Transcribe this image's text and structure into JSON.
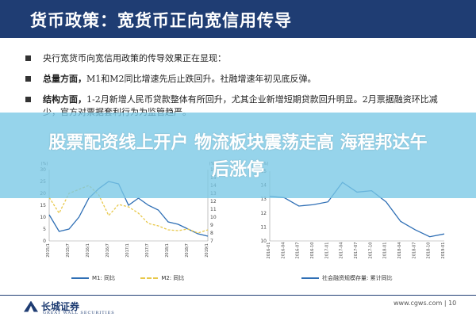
{
  "header": {
    "title": "货币政策：宽货币正向宽信用传导"
  },
  "bullets": [
    {
      "bold": "",
      "text": "央行宽货币向宽信用政策的传导效果正在显现："
    },
    {
      "bold": "总量方面，",
      "text": "M1和M2同比增速先后止跌回升。社融增速年初见底反弹。"
    },
    {
      "bold": "结构方面，",
      "text": "1-2月新增人民币贷款整体有所回升，尤其企业新增短期贷款回升明显。2月票据融资环比减少，官方对票据套利行为为监管趋严。"
    }
  ],
  "banner": {
    "line1": "股票配资线上开户 物流板块震荡走高 海程邦达午",
    "line2": "后涨停"
  },
  "left_chart": {
    "unit_left": "(%)",
    "unit_right": "(%)",
    "y_left_ticks": [
      "30",
      "25",
      "20",
      "15",
      "10",
      "5",
      "0"
    ],
    "y_right_ticks": [
      "16",
      "15",
      "14",
      "13",
      "12",
      "11",
      "10",
      "9",
      "8",
      "7"
    ],
    "x_ticks": [
      "2015/1",
      "2015/7",
      "2016/1",
      "2016/7",
      "2017/1",
      "2017/7",
      "2018/1",
      "2018/7",
      "2019/1"
    ],
    "legend": [
      "M1: 同比",
      "M2: 同比"
    ]
  },
  "right_chart": {
    "unit": "(%)",
    "y_ticks": [
      "15",
      "14",
      "13",
      "12",
      "11",
      "10"
    ],
    "x_ticks": [
      "2016-01",
      "2016-04",
      "2016-07",
      "2016-10",
      "2017-01",
      "2017-04",
      "2017-07",
      "2017-10",
      "2018-01",
      "2018-04",
      "2018-07",
      "2018-10",
      "2019-01"
    ],
    "legend": [
      "社会融资规模存量: 累计同比"
    ]
  },
  "chart_data": [
    {
      "type": "line",
      "title": "",
      "x": [
        "2015/1",
        "2015/4",
        "2015/7",
        "2015/10",
        "2016/1",
        "2016/4",
        "2016/7",
        "2016/10",
        "2017/1",
        "2017/4",
        "2017/7",
        "2017/10",
        "2018/1",
        "2018/4",
        "2018/7",
        "2018/10",
        "2019/1"
      ],
      "series": [
        {
          "name": "M1: 同比",
          "axis": "left",
          "values": [
            11,
            4,
            5,
            10,
            18,
            22,
            25,
            24,
            15,
            18,
            15,
            13,
            8,
            7,
            5,
            3,
            2
          ]
        },
        {
          "name": "M2: 同比",
          "axis": "right",
          "values": [
            12.5,
            10.5,
            13,
            13.5,
            14,
            12.8,
            10.2,
            11.6,
            11.3,
            10.5,
            9.2,
            8.9,
            8.4,
            8.3,
            8.5,
            8.0,
            8.4
          ]
        }
      ],
      "ylim_left": [
        0,
        30
      ],
      "ylim_right": [
        7,
        16
      ]
    },
    {
      "type": "line",
      "title": "",
      "x": [
        "2016-01",
        "2016-04",
        "2016-07",
        "2016-10",
        "2017-01",
        "2017-04",
        "2017-07",
        "2017-10",
        "2018-01",
        "2018-04",
        "2018-07",
        "2018-10",
        "2019-01"
      ],
      "series": [
        {
          "name": "社会融资规模存量: 累计同比",
          "values": [
            13.2,
            13.1,
            12.5,
            12.6,
            12.8,
            14.2,
            13.5,
            13.6,
            12.8,
            11.4,
            10.8,
            10.3,
            10.5
          ]
        }
      ],
      "ylim": [
        10,
        15
      ]
    }
  ],
  "footer": {
    "logo_cn": "长城证券",
    "logo_en": "GREAT WALL SECURITIES",
    "site": "www.cgws.com",
    "page": "10"
  },
  "colors": {
    "header": "#1f3d73",
    "banner": "#78c8e6",
    "m1": "#2f6fb5",
    "m2": "#e8c84a",
    "tsf": "#2f6fb5"
  }
}
